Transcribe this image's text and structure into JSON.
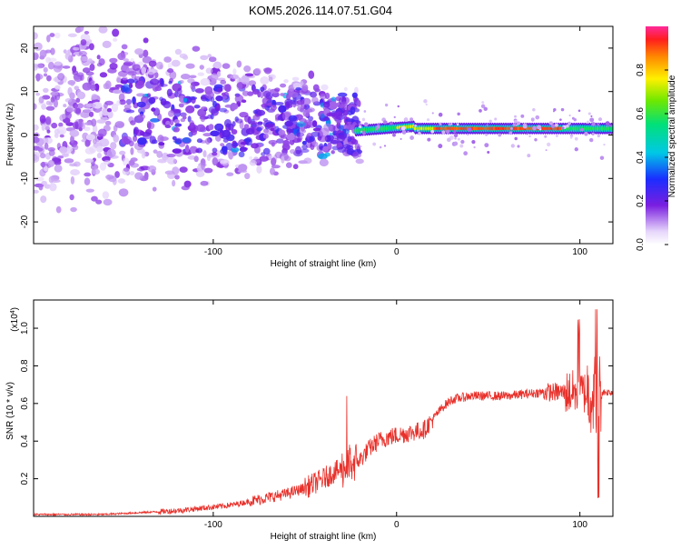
{
  "title": "KOM5.2026.114.07.51.G04",
  "colors": {
    "spectro_purple": "#6a00d8",
    "snr_line": "#e8302a",
    "axis": "#000000"
  },
  "chart_data": [
    {
      "type": "heatmap",
      "xlabel": "Height of straight line (km)",
      "ylabel": "Frequency (Hz)",
      "xlim": [
        -198,
        118
      ],
      "ylim": [
        -25,
        25
      ],
      "xticks": [
        {
          "value": -100,
          "label": "-100"
        },
        {
          "value": 0,
          "label": "0"
        },
        {
          "value": 100,
          "label": "100"
        }
      ],
      "yticks": [
        {
          "value": 20,
          "label": "20"
        },
        {
          "value": 10,
          "label": "10"
        },
        {
          "value": 0,
          "label": "0"
        },
        {
          "value": -10,
          "label": "-10"
        },
        {
          "value": -20,
          "label": "-20"
        }
      ],
      "colorbar": {
        "label": "Normalized spectral amplitude",
        "range": [
          0,
          1
        ],
        "ticks": [
          {
            "value": 0.0,
            "label": "0.0"
          },
          {
            "value": 0.2,
            "label": "0.2"
          },
          {
            "value": 0.4,
            "label": "0.4"
          },
          {
            "value": 0.6,
            "label": "0.6"
          },
          {
            "value": 0.8,
            "label": "0.8"
          }
        ]
      },
      "ridge": [
        {
          "x": -20,
          "y": 1
        },
        {
          "x": -10,
          "y": 1.5
        },
        {
          "x": 0,
          "y": 2
        },
        {
          "x": 10,
          "y": 2
        },
        {
          "x": 20,
          "y": 1.5
        },
        {
          "x": 40,
          "y": 1.5
        },
        {
          "x": 60,
          "y": 1.5
        },
        {
          "x": 80,
          "y": 1.5
        },
        {
          "x": 100,
          "y": 1.5
        },
        {
          "x": 118,
          "y": 1.5
        }
      ]
    },
    {
      "type": "line",
      "xlabel": "Height of straight line (km)",
      "ylabel": "SNR (10 * v/v)",
      "yscale_label": "(x10",
      "yscale_exp": "4",
      "yscale_close": ")",
      "xlim": [
        -198,
        118
      ],
      "ylim": [
        0,
        1.15
      ],
      "xticks": [
        {
          "value": -100,
          "label": "-100"
        },
        {
          "value": 0,
          "label": "0"
        },
        {
          "value": 100,
          "label": "100"
        }
      ],
      "yticks": [
        {
          "value": 0.2,
          "label": "0.2"
        },
        {
          "value": 0.4,
          "label": "0.4"
        },
        {
          "value": 0.6,
          "label": "0.6"
        },
        {
          "value": 0.8,
          "label": "0.8"
        },
        {
          "value": 1.0,
          "label": "1.0"
        }
      ],
      "series": [
        {
          "x": [
            -198,
            -180,
            -160,
            -140,
            -120,
            -110,
            -100,
            -90,
            -80,
            -70,
            -60,
            -50,
            -40,
            -35,
            -30,
            -25,
            -20,
            -15,
            -10,
            -5,
            0,
            5,
            10,
            15,
            20,
            25,
            30,
            40,
            50,
            60,
            70,
            80,
            90,
            95,
            100,
            105,
            108,
            110,
            115,
            118
          ],
          "y": [
            0.01,
            0.01,
            0.01,
            0.02,
            0.03,
            0.04,
            0.05,
            0.06,
            0.08,
            0.1,
            0.12,
            0.15,
            0.2,
            0.23,
            0.25,
            0.28,
            0.3,
            0.36,
            0.4,
            0.42,
            0.43,
            0.44,
            0.45,
            0.46,
            0.52,
            0.58,
            0.62,
            0.64,
            0.64,
            0.64,
            0.65,
            0.66,
            0.66,
            0.66,
            0.66,
            0.66,
            0.65,
            0.66,
            0.66,
            0.66
          ]
        }
      ]
    }
  ]
}
